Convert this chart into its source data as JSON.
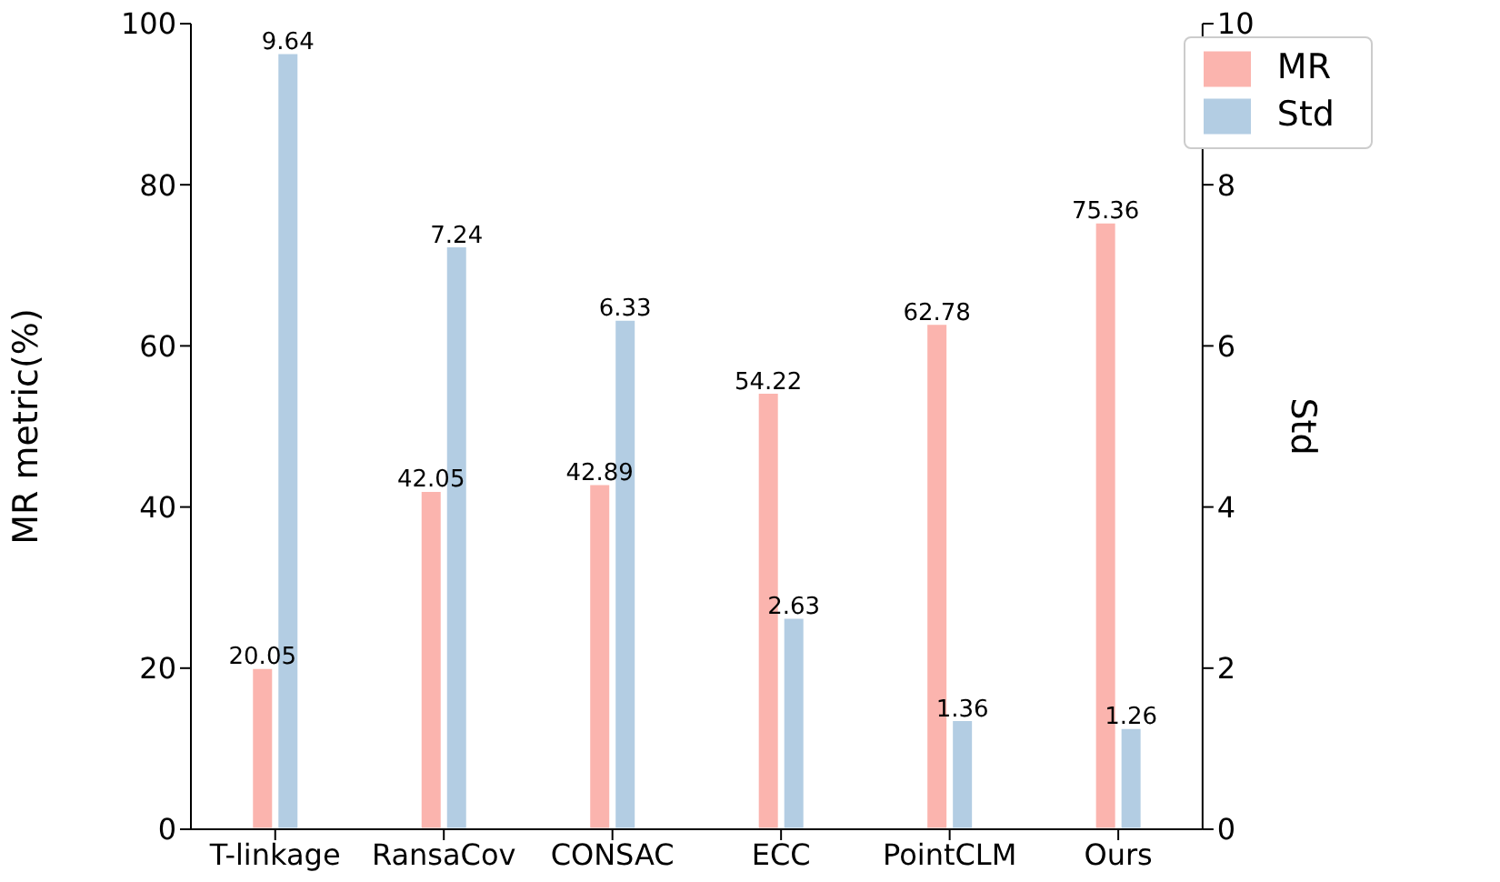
{
  "chart_data": {
    "type": "bar",
    "categories": [
      "T-linkage",
      "RansaCov",
      "CONSAC",
      "ECC",
      "PointCLM",
      "Ours"
    ],
    "series": [
      {
        "name": "MR",
        "color": "#fbb4ae",
        "values": [
          20.05,
          42.05,
          42.89,
          54.22,
          62.78,
          75.36
        ]
      },
      {
        "name": "Std",
        "color": "#b3cde3",
        "values": [
          9.64,
          7.24,
          6.33,
          2.63,
          1.36,
          1.26
        ],
        "axis": "y2"
      }
    ],
    "ylabel": "MR metric(%)",
    "y2label": "Std",
    "ylim": [
      0,
      100
    ],
    "yticks": [
      0,
      20,
      40,
      60,
      80,
      100
    ],
    "y2lim": [
      0,
      10
    ],
    "y2ticks": [
      0,
      2,
      4,
      6,
      8,
      10
    ],
    "data_labels": true,
    "legend": "top right",
    "grid": false
  }
}
